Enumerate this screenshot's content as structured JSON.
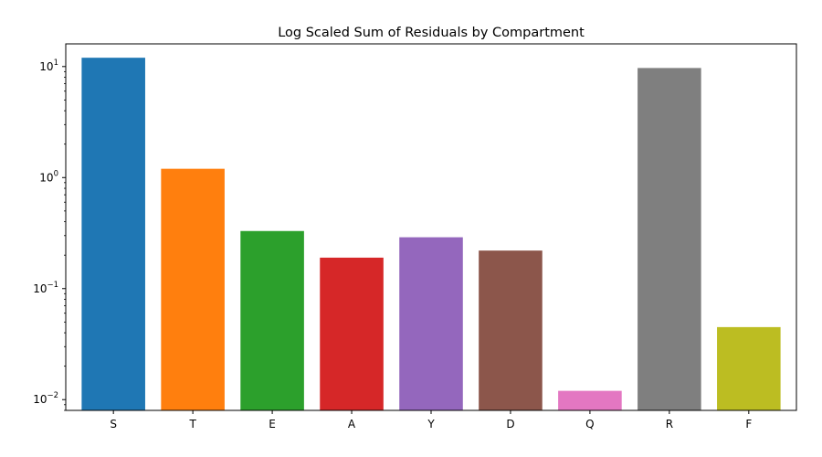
{
  "chart_data": {
    "type": "bar",
    "title": "Log Scaled Sum of Residuals by Compartment",
    "xlabel": "",
    "ylabel": "",
    "yscale": "log",
    "ylim": [
      0.008,
      16
    ],
    "yticks": [
      {
        "value": 0.01,
        "base": "10",
        "exp": "−2"
      },
      {
        "value": 0.1,
        "base": "10",
        "exp": "−1"
      },
      {
        "value": 1,
        "base": "10",
        "exp": "0"
      },
      {
        "value": 10,
        "base": "10",
        "exp": "1"
      }
    ],
    "categories": [
      "S",
      "T",
      "E",
      "A",
      "Y",
      "D",
      "Q",
      "R",
      "F"
    ],
    "values": [
      12,
      1.2,
      0.33,
      0.19,
      0.29,
      0.22,
      0.012,
      9.7,
      0.045
    ],
    "colors": [
      "#1f77b4",
      "#ff7f0e",
      "#2ca02c",
      "#d62728",
      "#9467bd",
      "#8c564b",
      "#e377c2",
      "#7f7f7f",
      "#bcbd22"
    ],
    "grid": false,
    "legend": "none"
  }
}
